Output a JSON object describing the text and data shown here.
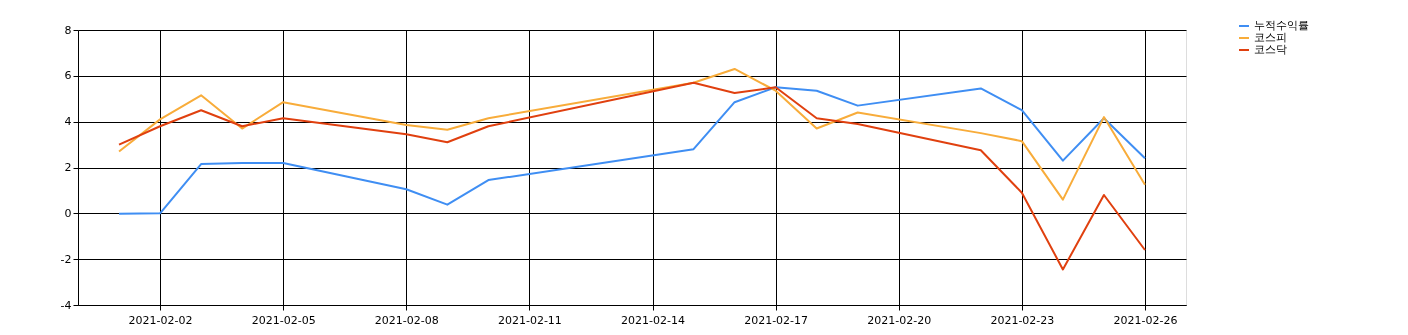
{
  "chart_data": {
    "type": "line",
    "x": [
      "2021-02-01",
      "2021-02-02",
      "2021-02-03",
      "2021-02-04",
      "2021-02-05",
      "2021-02-08",
      "2021-02-09",
      "2021-02-10",
      "2021-02-15",
      "2021-02-16",
      "2021-02-17",
      "2021-02-18",
      "2021-02-19",
      "2021-02-22",
      "2021-02-23",
      "2021-02-24",
      "2021-02-25",
      "2021-02-26"
    ],
    "series": [
      {
        "name": "누적수익률",
        "color": "#3f8ef3",
        "values": [
          -0.02,
          0.0,
          2.15,
          2.2,
          2.2,
          1.05,
          0.38,
          1.45,
          2.8,
          4.85,
          5.5,
          5.35,
          4.7,
          5.45,
          4.5,
          2.3,
          4.15,
          2.4
        ]
      },
      {
        "name": "코스피",
        "color": "#f8ac3a",
        "values": [
          2.7,
          4.1,
          5.15,
          3.7,
          4.85,
          3.85,
          3.65,
          4.15,
          5.7,
          6.3,
          5.35,
          3.7,
          4.4,
          3.5,
          3.15,
          0.6,
          4.2,
          1.25
        ]
      },
      {
        "name": "코스닥",
        "color": "#e0400f",
        "values": [
          3.0,
          3.8,
          4.5,
          3.8,
          4.15,
          3.45,
          3.1,
          3.8,
          5.7,
          5.25,
          5.5,
          4.15,
          3.9,
          2.75,
          0.9,
          -2.45,
          0.8,
          -1.6
        ]
      }
    ],
    "xlim": [
      "2021-01-31",
      "2021-02-27"
    ],
    "xticks": [
      "2021-02-02",
      "2021-02-05",
      "2021-02-08",
      "2021-02-11",
      "2021-02-14",
      "2021-02-17",
      "2021-02-20",
      "2021-02-23",
      "2021-02-26"
    ],
    "ylim": [
      -4,
      8
    ],
    "yticks": [
      -4,
      -2,
      0,
      2,
      4,
      6,
      8
    ],
    "grid": true,
    "legend": "top right",
    "marker": "none",
    "line_style": "solid"
  }
}
